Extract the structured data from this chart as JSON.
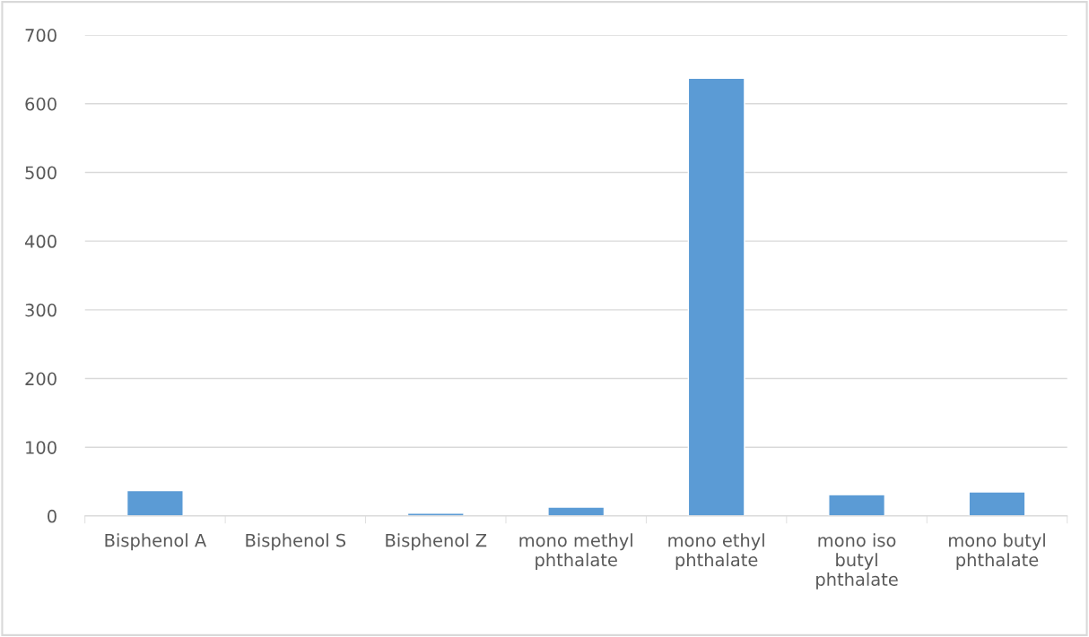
{
  "chart_data": {
    "type": "bar",
    "categories": [
      "Bisphenol A",
      "Bisphenol S",
      "Bisphenol Z",
      "mono methyl phthalate",
      "mono ethyl phthalate",
      "mono iso butyl phthalate",
      "mono butyl phthalate"
    ],
    "values": [
      37,
      null,
      4,
      13,
      637,
      31,
      35
    ],
    "color": "#5b9bd5",
    "ylim": [
      0,
      700
    ],
    "yticks": [
      0,
      100,
      200,
      300,
      400,
      500,
      600,
      700
    ],
    "grid": "y",
    "legend": false
  }
}
